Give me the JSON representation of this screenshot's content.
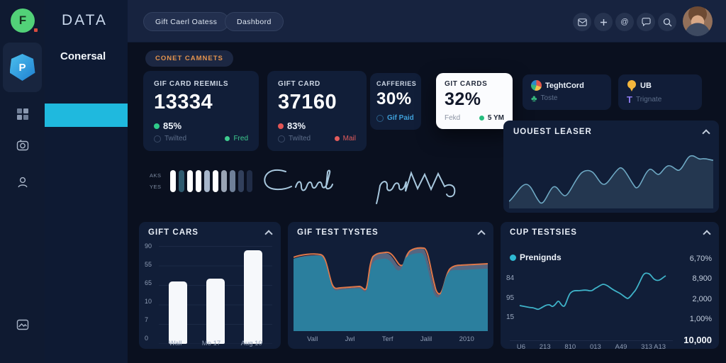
{
  "brand": {
    "logo_text": "F",
    "app_title": "DATA",
    "section": "Conersal"
  },
  "header": {
    "tabs": [
      {
        "label": "Gift Caerl Oatess"
      },
      {
        "label": "Dashbord"
      }
    ],
    "icon_names": [
      "mail-icon",
      "plus-icon",
      "at-icon",
      "chat-icon",
      "search-icon"
    ],
    "at_glyph": "@"
  },
  "content_tag": "CONET CAMNETS",
  "kpi": [
    {
      "title": "GIF CARD REEMILS",
      "value": "13334",
      "pct": "85%",
      "pct_color": "#2fcb8a",
      "left": "Twilted",
      "right": "Fred",
      "right_color": "#3ecb8f"
    },
    {
      "title": "GIFT CARD",
      "value": "37160",
      "pct": "83%",
      "pct_color": "#e25555",
      "left": "Twilted",
      "right": "Mail",
      "right_color": "#e25c5c"
    },
    {
      "title": "CAFFERIES",
      "value": "30%",
      "link": "Gif Paid",
      "link_color": "#3f9fd9"
    },
    {
      "title": "GIT CARDS",
      "value": "32%",
      "left": "Fekd",
      "right": "5 YM"
    }
  ],
  "mini": [
    {
      "title": "TeghtCord",
      "sub": "Toste"
    },
    {
      "title": "UB",
      "sub": "Trignate",
      "t_glyph": "T"
    }
  ],
  "uouest": {
    "title": "UOUEST LEASER",
    "chart_data": {
      "type": "area",
      "values": [
        14,
        35,
        8,
        30,
        20,
        52,
        50,
        31,
        59,
        31,
        57,
        49,
        61,
        54,
        77,
        71,
        70
      ],
      "line_color": "#6ea9c4",
      "fill_color": "#243750"
    }
  },
  "sparkline": {
    "label_top": "AKS",
    "label_bottom": "YES",
    "pill_colors": [
      "#ffffff",
      "#2e5a6e",
      "#ffffff",
      "#ffffff",
      "#a7b6cb",
      "#ffffff",
      "#9aa5b5",
      "#6f8099",
      "#32405c",
      "#202c46"
    ]
  },
  "panels": {
    "gift_cars": {
      "title": "GIFT CARS",
      "chart_data": {
        "type": "bar",
        "values": [
          60,
          63,
          90
        ],
        "max": 90,
        "y_labels": [
          "90",
          "55",
          "65",
          "10",
          "7",
          "0"
        ],
        "x_labels": [
          "Wall",
          "Mo 17",
          "Aug 10"
        ],
        "bar_color": "#f6f8fb"
      }
    },
    "gif_test": {
      "title": "GIF TEST TYSTES",
      "chart_data": {
        "type": "area",
        "x_labels": [
          "Vall",
          "Jwl",
          "Terf",
          "Jalil",
          "2010"
        ],
        "series": [
          {
            "name": "primary",
            "color": "#2b7f9e",
            "values": [
              84,
              85,
              53,
              48,
              47,
              79,
              81,
              71,
              86,
              89,
              41,
              71,
              72
            ]
          },
          {
            "name": "secondary",
            "color": "#8fa3bd",
            "values": [
              85,
              87,
              55,
              50,
              49,
              85,
              88,
              78,
              93,
              95,
              45,
              76,
              77
            ]
          }
        ],
        "line_color": "#e0784a"
      }
    },
    "cup_test": {
      "title": "CUP TESTSIES",
      "legend": "Prenignds",
      "chart_data": {
        "type": "line",
        "line_color": "#3fb3c9",
        "y_left_labels": [
          "84",
          "95",
          "15"
        ],
        "right_values": [
          "6,70%",
          "8,900",
          "2,000",
          "1,00%",
          "10,000"
        ],
        "x_labels": [
          "U6",
          "213",
          "810",
          "013",
          "A49",
          "313 A13"
        ],
        "values": [
          19,
          18,
          15,
          17,
          20,
          22,
          18,
          26,
          40,
          42,
          41,
          44,
          48,
          46,
          42,
          36,
          33,
          38,
          58,
          75,
          72,
          68,
          74
        ]
      }
    }
  }
}
